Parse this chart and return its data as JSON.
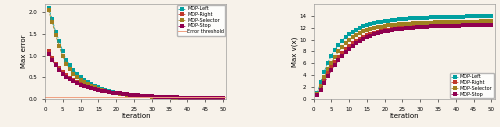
{
  "iterations": [
    1,
    2,
    3,
    4,
    5,
    6,
    7,
    8,
    9,
    10,
    11,
    12,
    13,
    14,
    15,
    16,
    17,
    18,
    19,
    20,
    21,
    22,
    23,
    24,
    25,
    26,
    27,
    28,
    29,
    30,
    31,
    32,
    33,
    34,
    35,
    36,
    37,
    38,
    39,
    40,
    41,
    42,
    43,
    44,
    45,
    46,
    47,
    48,
    49,
    50
  ],
  "error_left": [
    2.1,
    1.85,
    1.55,
    1.35,
    1.1,
    0.9,
    0.78,
    0.67,
    0.58,
    0.5,
    0.44,
    0.39,
    0.34,
    0.3,
    0.27,
    0.24,
    0.21,
    0.19,
    0.17,
    0.15,
    0.14,
    0.12,
    0.11,
    0.1,
    0.09,
    0.085,
    0.076,
    0.07,
    0.064,
    0.058,
    0.054,
    0.05,
    0.046,
    0.042,
    0.039,
    0.036,
    0.033,
    0.031,
    0.029,
    0.027,
    0.025,
    0.023,
    0.021,
    0.02,
    0.019,
    0.017,
    0.016,
    0.015,
    0.014,
    0.013
  ],
  "error_right": [
    1.1,
    0.95,
    0.82,
    0.72,
    0.63,
    0.55,
    0.49,
    0.44,
    0.39,
    0.35,
    0.32,
    0.29,
    0.26,
    0.24,
    0.22,
    0.2,
    0.18,
    0.16,
    0.15,
    0.14,
    0.13,
    0.12,
    0.11,
    0.1,
    0.092,
    0.085,
    0.079,
    0.073,
    0.067,
    0.062,
    0.057,
    0.053,
    0.049,
    0.045,
    0.042,
    0.039,
    0.036,
    0.033,
    0.031,
    0.029,
    0.027,
    0.025,
    0.023,
    0.022,
    0.02,
    0.019,
    0.017,
    0.016,
    0.015,
    0.014
  ],
  "error_selector": [
    2.05,
    1.78,
    1.48,
    1.22,
    0.99,
    0.82,
    0.69,
    0.59,
    0.51,
    0.44,
    0.39,
    0.34,
    0.3,
    0.27,
    0.24,
    0.21,
    0.19,
    0.17,
    0.15,
    0.14,
    0.12,
    0.11,
    0.1,
    0.092,
    0.085,
    0.078,
    0.072,
    0.066,
    0.061,
    0.056,
    0.052,
    0.048,
    0.044,
    0.041,
    0.038,
    0.035,
    0.032,
    0.03,
    0.028,
    0.026,
    0.024,
    0.022,
    0.021,
    0.019,
    0.018,
    0.017,
    0.016,
    0.014,
    0.013,
    0.012
  ],
  "error_stop": [
    1.05,
    0.9,
    0.78,
    0.68,
    0.59,
    0.52,
    0.46,
    0.41,
    0.37,
    0.33,
    0.3,
    0.27,
    0.25,
    0.23,
    0.21,
    0.19,
    0.18,
    0.16,
    0.15,
    0.14,
    0.13,
    0.12,
    0.11,
    0.1,
    0.093,
    0.086,
    0.08,
    0.074,
    0.068,
    0.063,
    0.058,
    0.054,
    0.05,
    0.046,
    0.043,
    0.04,
    0.037,
    0.034,
    0.032,
    0.03,
    0.028,
    0.026,
    0.024,
    0.022,
    0.021,
    0.019,
    0.018,
    0.017,
    0.016,
    0.015
  ],
  "error_threshold": 0.05,
  "val_left": [
    1.0,
    2.8,
    4.6,
    6.1,
    7.3,
    8.3,
    9.1,
    9.8,
    10.4,
    10.9,
    11.3,
    11.65,
    11.95,
    12.2,
    12.42,
    12.6,
    12.75,
    12.88,
    13.0,
    13.1,
    13.18,
    13.26,
    13.33,
    13.39,
    13.44,
    13.49,
    13.54,
    13.58,
    13.61,
    13.64,
    13.67,
    13.7,
    13.72,
    13.74,
    13.76,
    13.78,
    13.79,
    13.81,
    13.82,
    13.83,
    13.85,
    13.86,
    13.87,
    13.88,
    13.89,
    13.9,
    13.91,
    13.91,
    13.92,
    13.93
  ],
  "val_right": [
    0.7,
    1.8,
    3.1,
    4.3,
    5.4,
    6.3,
    7.1,
    7.8,
    8.4,
    8.95,
    9.4,
    9.8,
    10.15,
    10.45,
    10.7,
    10.92,
    11.1,
    11.26,
    11.4,
    11.52,
    11.62,
    11.71,
    11.79,
    11.86,
    11.92,
    11.97,
    12.02,
    12.06,
    12.1,
    12.14,
    12.17,
    12.2,
    12.22,
    12.25,
    12.27,
    12.29,
    12.3,
    12.32,
    12.33,
    12.35,
    12.36,
    12.37,
    12.38,
    12.39,
    12.4,
    12.41,
    12.41,
    12.42,
    12.43,
    12.43
  ],
  "val_selector": [
    0.85,
    2.2,
    3.7,
    5.0,
    6.1,
    7.1,
    8.0,
    8.7,
    9.35,
    9.9,
    10.35,
    10.75,
    11.08,
    11.35,
    11.58,
    11.77,
    11.93,
    12.06,
    12.18,
    12.27,
    12.36,
    12.43,
    12.5,
    12.56,
    12.61,
    12.65,
    12.69,
    12.73,
    12.76,
    12.79,
    12.82,
    12.84,
    12.86,
    12.88,
    12.9,
    12.91,
    12.93,
    12.94,
    12.95,
    12.97,
    12.98,
    12.99,
    13.0,
    13.01,
    13.01,
    13.02,
    13.03,
    13.03,
    13.04,
    13.04
  ],
  "val_stop": [
    0.6,
    1.6,
    2.7,
    3.8,
    4.8,
    5.7,
    6.5,
    7.2,
    7.85,
    8.4,
    8.9,
    9.35,
    9.75,
    10.1,
    10.4,
    10.65,
    10.88,
    11.07,
    11.24,
    11.38,
    11.5,
    11.6,
    11.69,
    11.77,
    11.84,
    11.9,
    11.96,
    12.01,
    12.05,
    12.09,
    12.13,
    12.16,
    12.19,
    12.22,
    12.24,
    12.26,
    12.28,
    12.3,
    12.32,
    12.33,
    12.35,
    12.36,
    12.37,
    12.38,
    12.39,
    12.4,
    12.41,
    12.42,
    12.43,
    12.43
  ],
  "color_left": "#00a0a0",
  "color_right": "#c0392b",
  "color_selector": "#a08020",
  "color_stop": "#900050",
  "color_threshold": "#f0a080",
  "bg_color": "#f7f2ea",
  "xlabel": "Iteration",
  "ylabel_left": "Max error",
  "ylabel_right": "Max v(x)",
  "xlim": [
    0,
    51
  ],
  "ylim_left": [
    0,
    2.2
  ],
  "ylim_right": [
    0,
    16
  ],
  "xticks": [
    0,
    5,
    10,
    15,
    20,
    25,
    30,
    35,
    40,
    45,
    50
  ],
  "yticks_left": [
    0.0,
    0.5,
    1.0,
    1.5,
    2.0
  ],
  "yticks_right": [
    0,
    2,
    4,
    6,
    8,
    10,
    12,
    14
  ]
}
